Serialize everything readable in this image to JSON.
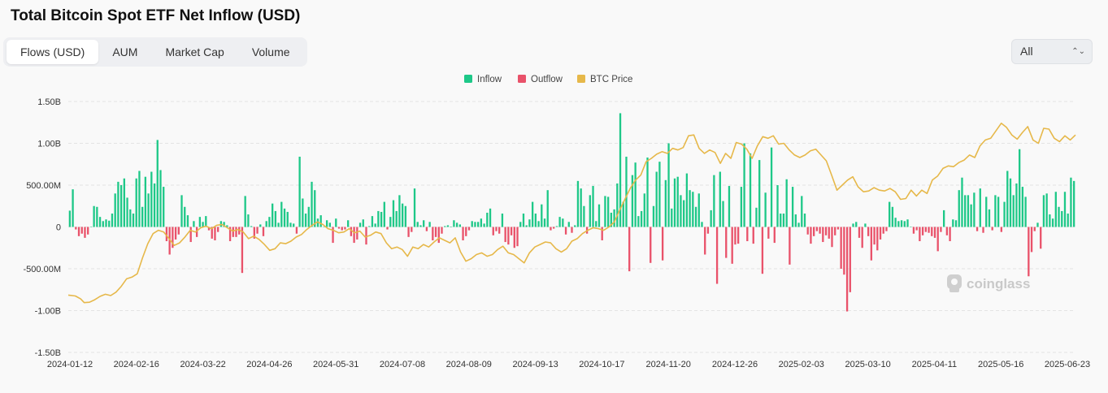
{
  "title": "Total Bitcoin Spot ETF Net Inflow (USD)",
  "tabs": [
    {
      "label": "Flows (USD)",
      "active": true
    },
    {
      "label": "AUM",
      "active": false
    },
    {
      "label": "Market Cap",
      "active": false
    },
    {
      "label": "Volume",
      "active": false
    }
  ],
  "range_select": {
    "value": "All"
  },
  "watermark": "coinglass",
  "colors": {
    "inflow": "#1ec888",
    "outflow": "#e9526a",
    "price": "#e6b84a",
    "grid": "#e4e4e4"
  },
  "chart_data": {
    "type": "bar",
    "legend": [
      {
        "name": "Inflow",
        "color": "#1ec888"
      },
      {
        "name": "Outflow",
        "color": "#e9526a"
      },
      {
        "name": "BTC Price",
        "color": "#e6b84a"
      }
    ],
    "legend_position": "top-center",
    "y_ticks": [
      "1.50B",
      "1.00B",
      "500.00M",
      "0",
      "-500.00M",
      "-1.00B",
      "-1.50B"
    ],
    "ylim": [
      -1500000000,
      1500000000
    ],
    "x_ticks": [
      "2024-01-12",
      "2024-02-16",
      "2024-03-22",
      "2024-04-26",
      "2024-05-31",
      "2024-07-08",
      "2024-08-09",
      "2024-09-13",
      "2024-10-17",
      "2024-11-20",
      "2024-12-26",
      "2025-02-03",
      "2025-03-10",
      "2025-04-11",
      "2025-05-16",
      "2025-06-23"
    ],
    "grid": true,
    "net_flow_usd_m": [
      195,
      450,
      -30,
      -110,
      -80,
      -130,
      -90,
      5,
      250,
      240,
      120,
      70,
      90,
      75,
      160,
      400,
      540,
      500,
      580,
      350,
      210,
      160,
      580,
      670,
      240,
      600,
      400,
      660,
      520,
      1040,
      680,
      480,
      -170,
      -330,
      -250,
      -150,
      -90,
      380,
      240,
      140,
      -180,
      70,
      -120,
      120,
      60,
      130,
      -40,
      -140,
      -160,
      -60,
      70,
      60,
      20,
      -170,
      -120,
      -120,
      -90,
      -550,
      370,
      150,
      10,
      -140,
      -80,
      30,
      -110,
      70,
      120,
      280,
      190,
      50,
      300,
      220,
      180,
      50,
      40,
      -80,
      840,
      340,
      160,
      240,
      540,
      440,
      100,
      140,
      0,
      80,
      50,
      -190,
      100,
      -20,
      -40,
      -30,
      80,
      -110,
      -190,
      -150,
      50,
      90,
      -210,
      10,
      130,
      40,
      190,
      180,
      300,
      -30,
      120,
      320,
      190,
      380,
      280,
      250,
      -120,
      -60,
      460,
      60,
      20,
      80,
      -50,
      60,
      -160,
      -120,
      -190,
      -80,
      10,
      20,
      0,
      80,
      50,
      30,
      -160,
      -110,
      -40,
      70,
      60,
      60,
      100,
      40,
      170,
      220,
      -100,
      -50,
      -80,
      160,
      -180,
      -210,
      -100,
      -250,
      -230,
      60,
      160,
      20,
      90,
      300,
      160,
      70,
      270,
      100,
      440,
      -40,
      -20,
      10,
      120,
      100,
      -90,
      60,
      -70,
      20,
      550,
      460,
      250,
      -80,
      380,
      490,
      70,
      270,
      -160,
      370,
      360,
      170,
      210,
      520,
      1360,
      300,
      840,
      -530,
      620,
      770,
      130,
      190,
      400,
      830,
      -430,
      250,
      660,
      780,
      -400,
      560,
      1000,
      220,
      580,
      600,
      380,
      320,
      640,
      440,
      420,
      240,
      400,
      60,
      -330,
      -80,
      200,
      620,
      -680,
      660,
      310,
      -370,
      490,
      -440,
      -210,
      -200,
      480,
      1000,
      -170,
      880,
      -200,
      230,
      800,
      -560,
      410,
      -140,
      950,
      -190,
      500,
      160,
      160,
      570,
      -450,
      480,
      150,
      50,
      370,
      160,
      -90,
      -200,
      -110,
      -50,
      -80,
      -180,
      -100,
      -140,
      -240,
      -100,
      -30,
      -500,
      -570,
      -1010,
      -780,
      40,
      60,
      -130,
      -250,
      40,
      -110,
      -400,
      -210,
      -280,
      -150,
      -80,
      -50,
      300,
      240,
      110,
      70,
      80,
      70,
      90,
      0,
      -80,
      -40,
      -170,
      -100,
      -60,
      -70,
      -110,
      -130,
      -290,
      -60,
      200,
      -100,
      -170,
      90,
      80,
      440,
      590,
      380,
      380,
      270,
      410,
      -50,
      460,
      -70,
      360,
      210,
      -40,
      380,
      360,
      -60,
      300,
      670,
      580,
      380,
      520,
      930,
      480,
      360,
      -590,
      -300,
      -50,
      50,
      -260,
      380,
      400,
      150,
      100,
      420,
      240,
      190,
      420,
      160,
      590,
      550
    ],
    "btc_price_pixel_trace_note": "",
    "btc_price_series": [
      [
        0,
        -815
      ],
      [
        4,
        -825
      ],
      [
        7,
        -860
      ],
      [
        9,
        -905
      ],
      [
        12,
        -900
      ],
      [
        15,
        -870
      ],
      [
        18,
        -830
      ],
      [
        21,
        -805
      ],
      [
        24,
        -820
      ],
      [
        27,
        -780
      ],
      [
        30,
        -710
      ],
      [
        33,
        -620
      ],
      [
        36,
        -600
      ],
      [
        39,
        -560
      ],
      [
        42,
        -370
      ],
      [
        45,
        -200
      ],
      [
        48,
        -80
      ],
      [
        51,
        -40
      ],
      [
        54,
        -60
      ],
      [
        57,
        -140
      ],
      [
        60,
        -220
      ],
      [
        63,
        -190
      ],
      [
        66,
        -120
      ],
      [
        69,
        -40
      ],
      [
        72,
        -60
      ],
      [
        75,
        -10
      ],
      [
        78,
        10
      ],
      [
        81,
        -20
      ],
      [
        84,
        20
      ],
      [
        87,
        30
      ],
      [
        90,
        -10
      ],
      [
        93,
        -50
      ],
      [
        96,
        -30
      ],
      [
        99,
        -60
      ],
      [
        102,
        -140
      ],
      [
        105,
        -110
      ],
      [
        108,
        -150
      ],
      [
        111,
        -210
      ],
      [
        114,
        -280
      ],
      [
        117,
        -260
      ],
      [
        120,
        -190
      ],
      [
        123,
        -200
      ],
      [
        126,
        -170
      ],
      [
        129,
        -120
      ],
      [
        132,
        -90
      ],
      [
        135,
        -30
      ],
      [
        138,
        20
      ],
      [
        141,
        60
      ],
      [
        144,
        30
      ],
      [
        147,
        -20
      ],
      [
        150,
        -40
      ],
      [
        153,
        -70
      ],
      [
        156,
        -60
      ],
      [
        159,
        -20
      ],
      [
        162,
        -70
      ],
      [
        165,
        -50
      ],
      [
        168,
        -120
      ],
      [
        171,
        -100
      ],
      [
        174,
        -60
      ],
      [
        177,
        -80
      ],
      [
        180,
        -190
      ],
      [
        183,
        -260
      ],
      [
        186,
        -240
      ],
      [
        189,
        -270
      ],
      [
        192,
        -350
      ],
      [
        195,
        -240
      ],
      [
        198,
        -260
      ],
      [
        201,
        -210
      ],
      [
        204,
        -240
      ],
      [
        207,
        -180
      ],
      [
        210,
        -130
      ],
      [
        213,
        -160
      ],
      [
        216,
        -190
      ],
      [
        219,
        -130
      ],
      [
        222,
        -300
      ],
      [
        225,
        -410
      ],
      [
        228,
        -380
      ],
      [
        231,
        -330
      ],
      [
        234,
        -310
      ],
      [
        237,
        -350
      ],
      [
        240,
        -330
      ],
      [
        243,
        -270
      ],
      [
        246,
        -230
      ],
      [
        249,
        -310
      ],
      [
        252,
        -330
      ],
      [
        255,
        -380
      ],
      [
        258,
        -430
      ],
      [
        261,
        -310
      ],
      [
        264,
        -240
      ],
      [
        267,
        -210
      ],
      [
        270,
        -180
      ],
      [
        273,
        -190
      ],
      [
        276,
        -260
      ],
      [
        279,
        -300
      ],
      [
        282,
        -260
      ],
      [
        285,
        -170
      ],
      [
        288,
        -140
      ],
      [
        291,
        -80
      ],
      [
        294,
        -40
      ],
      [
        297,
        -10
      ],
      [
        300,
        -20
      ],
      [
        303,
        -40
      ],
      [
        306,
        0
      ],
      [
        309,
        60
      ],
      [
        312,
        200
      ],
      [
        315,
        330
      ],
      [
        318,
        460
      ],
      [
        321,
        560
      ],
      [
        324,
        620
      ],
      [
        327,
        780
      ],
      [
        330,
        820
      ],
      [
        333,
        870
      ],
      [
        336,
        900
      ],
      [
        339,
        880
      ],
      [
        342,
        940
      ],
      [
        345,
        920
      ],
      [
        348,
        950
      ],
      [
        351,
        1090
      ],
      [
        354,
        1100
      ],
      [
        357,
        940
      ],
      [
        360,
        880
      ],
      [
        363,
        920
      ],
      [
        366,
        890
      ],
      [
        369,
        760
      ],
      [
        372,
        880
      ],
      [
        375,
        820
      ],
      [
        378,
        1010
      ],
      [
        381,
        990
      ],
      [
        384,
        930
      ],
      [
        387,
        820
      ],
      [
        390,
        970
      ],
      [
        393,
        1080
      ],
      [
        396,
        1060
      ],
      [
        399,
        1090
      ],
      [
        402,
        990
      ],
      [
        405,
        1000
      ],
      [
        408,
        920
      ],
      [
        411,
        860
      ],
      [
        414,
        830
      ],
      [
        417,
        860
      ],
      [
        420,
        910
      ],
      [
        423,
        930
      ],
      [
        426,
        860
      ],
      [
        429,
        790
      ],
      [
        432,
        620
      ],
      [
        435,
        440
      ],
      [
        438,
        500
      ],
      [
        441,
        560
      ],
      [
        444,
        600
      ],
      [
        447,
        480
      ],
      [
        450,
        420
      ],
      [
        453,
        430
      ],
      [
        456,
        470
      ],
      [
        459,
        440
      ],
      [
        462,
        430
      ],
      [
        465,
        460
      ],
      [
        468,
        420
      ],
      [
        471,
        330
      ],
      [
        474,
        340
      ],
      [
        477,
        440
      ],
      [
        480,
        370
      ],
      [
        483,
        440
      ],
      [
        486,
        400
      ],
      [
        489,
        560
      ],
      [
        492,
        610
      ],
      [
        495,
        700
      ],
      [
        498,
        730
      ],
      [
        501,
        720
      ],
      [
        504,
        770
      ],
      [
        507,
        800
      ],
      [
        510,
        860
      ],
      [
        513,
        830
      ],
      [
        516,
        970
      ],
      [
        519,
        1040
      ],
      [
        522,
        1060
      ],
      [
        525,
        1150
      ],
      [
        528,
        1240
      ],
      [
        531,
        1190
      ],
      [
        534,
        1100
      ],
      [
        537,
        1050
      ],
      [
        540,
        1130
      ],
      [
        543,
        1200
      ],
      [
        546,
        1040
      ],
      [
        549,
        1000
      ],
      [
        552,
        1180
      ],
      [
        555,
        1170
      ],
      [
        558,
        1060
      ],
      [
        561,
        1020
      ],
      [
        564,
        1090
      ],
      [
        567,
        1040
      ],
      [
        570,
        1100
      ]
    ]
  }
}
